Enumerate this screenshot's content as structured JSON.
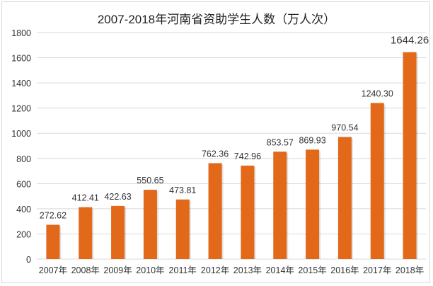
{
  "chart_data": {
    "type": "bar",
    "title": "2007-2018年河南省资助学生人数（万人次）",
    "xlabel": "",
    "ylabel": "",
    "ylim": [
      0,
      1800
    ],
    "yticks": [
      0,
      200,
      400,
      600,
      800,
      1000,
      1200,
      1400,
      1600,
      1800
    ],
    "grid": true,
    "categories": [
      "2007年",
      "2008年",
      "2009年",
      "2010年",
      "2011年",
      "2012年",
      "2013年",
      "2014年",
      "2015年",
      "2016年",
      "2017年",
      "2018年"
    ],
    "values": [
      272.62,
      412.41,
      422.63,
      550.65,
      473.81,
      762.36,
      742.96,
      853.57,
      869.93,
      970.54,
      1240.3,
      1644.26
    ],
    "data_labels": [
      "272.62",
      "412.41",
      "422.63",
      "550.65",
      "473.81",
      "762.36",
      "742.96",
      "853.57",
      "869.93",
      "970.54",
      "1240.30",
      "1644.26"
    ],
    "bar_color": "#E2681A",
    "grid_color": "#d9d9d9"
  }
}
